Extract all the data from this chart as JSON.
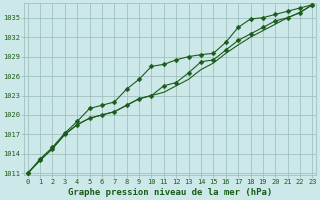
{
  "title": "Graphe pression niveau de la mer (hPa)",
  "background_color": "#cce8e8",
  "plot_bg_color": "#cce8e8",
  "grid_color": "#99bbbb",
  "line_color": "#1a5c1a",
  "marker_color": "#1a5c1a",
  "x_values": [
    0,
    1,
    2,
    3,
    4,
    5,
    6,
    7,
    8,
    9,
    10,
    11,
    12,
    13,
    14,
    15,
    16,
    17,
    18,
    19,
    20,
    21,
    22,
    23
  ],
  "line1": [
    1011.0,
    1013.2,
    1015.0,
    1017.2,
    1019.0,
    1021.0,
    1021.5,
    1022.0,
    1024.0,
    1025.5,
    1027.5,
    1027.8,
    1028.5,
    1029.0,
    1029.3,
    1029.5,
    1031.2,
    1033.5,
    1034.8,
    1035.0,
    1035.5,
    1036.0,
    1036.5,
    1037.0
  ],
  "line2": [
    1011.0,
    1013.0,
    1014.8,
    1017.0,
    1018.5,
    1019.5,
    1020.0,
    1020.5,
    1021.5,
    1022.5,
    1023.0,
    1024.5,
    1025.0,
    1026.5,
    1028.2,
    1028.5,
    1030.0,
    1031.5,
    1032.5,
    1033.5,
    1034.5,
    1035.0,
    1035.8,
    1037.0
  ],
  "line3": [
    1011.0,
    1013.0,
    1014.8,
    1017.0,
    1018.5,
    1019.5,
    1020.0,
    1020.5,
    1021.5,
    1022.5,
    1023.0,
    1023.5,
    1024.5,
    1025.5,
    1027.0,
    1028.0,
    1029.5,
    1030.8,
    1032.0,
    1033.0,
    1034.0,
    1035.0,
    1035.8,
    1037.0
  ],
  "ylim_min": 1011,
  "ylim_max": 1037,
  "yticks": [
    1011,
    1014,
    1017,
    1020,
    1023,
    1026,
    1029,
    1032,
    1035
  ],
  "xlim_min": 0,
  "xlim_max": 23,
  "xticks": [
    0,
    1,
    2,
    3,
    4,
    5,
    6,
    7,
    8,
    9,
    10,
    11,
    12,
    13,
    14,
    15,
    16,
    17,
    18,
    19,
    20,
    21,
    22,
    23
  ],
  "title_fontsize": 6.5,
  "tick_fontsize": 5.0,
  "marker_size": 2.5,
  "line_width": 0.8
}
